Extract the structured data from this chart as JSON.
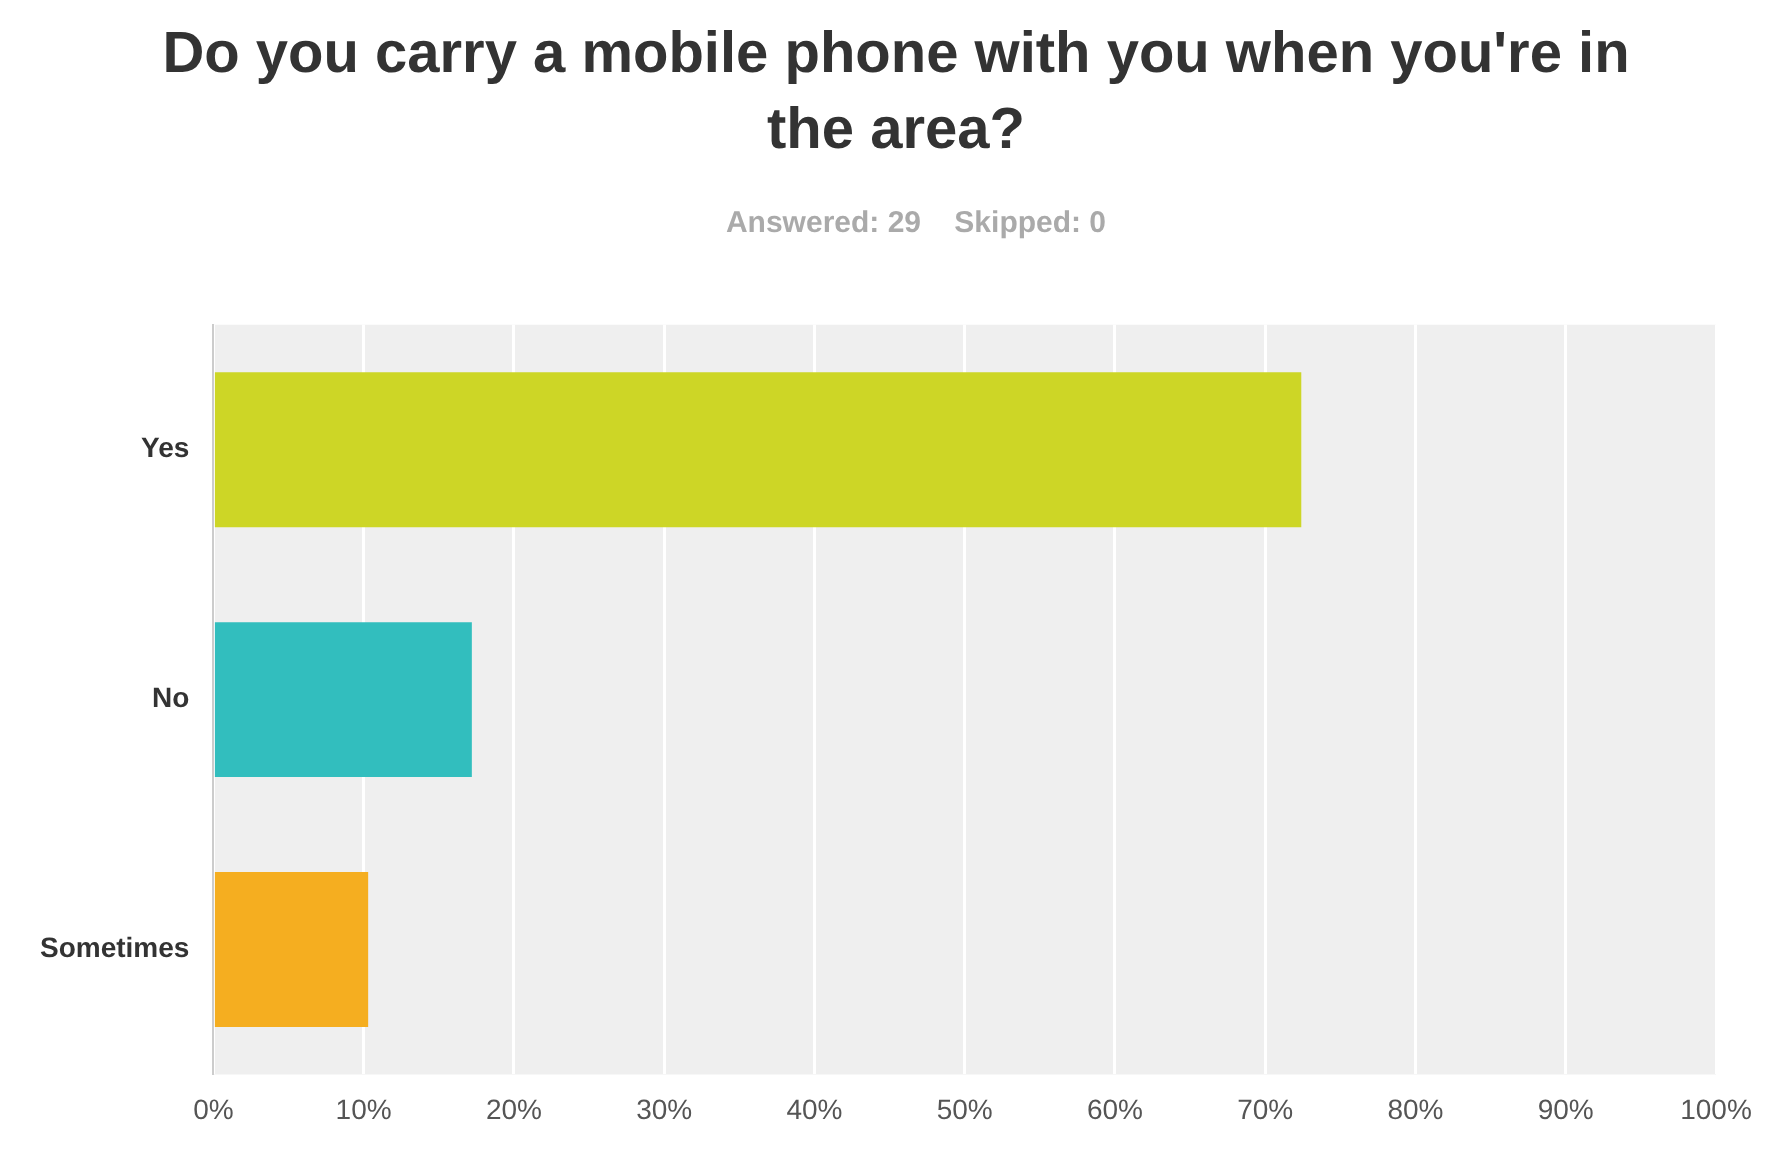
{
  "chart_data": {
    "type": "bar",
    "orientation": "horizontal",
    "title": "Do you carry a mobile phone with you when you're in the area?",
    "subtitle": "Answered: 29    Skipped: 0",
    "categories": [
      "Yes",
      "No",
      "Sometimes"
    ],
    "values": [
      72.4,
      17.2,
      10.3
    ],
    "colors": [
      "#cdd626",
      "#32bebe",
      "#f5ae20"
    ],
    "xlim": [
      0,
      100
    ],
    "xticks": [
      {
        "value": 0,
        "label": "0%"
      },
      {
        "value": 10,
        "label": "10%"
      },
      {
        "value": 20,
        "label": "20%"
      },
      {
        "value": 30,
        "label": "30%"
      },
      {
        "value": 40,
        "label": "40%"
      },
      {
        "value": 50,
        "label": "50%"
      },
      {
        "value": 60,
        "label": "60%"
      },
      {
        "value": 70,
        "label": "70%"
      },
      {
        "value": 80,
        "label": "80%"
      },
      {
        "value": 90,
        "label": "90%"
      },
      {
        "value": 100,
        "label": "100%"
      }
    ],
    "grid": "x"
  }
}
